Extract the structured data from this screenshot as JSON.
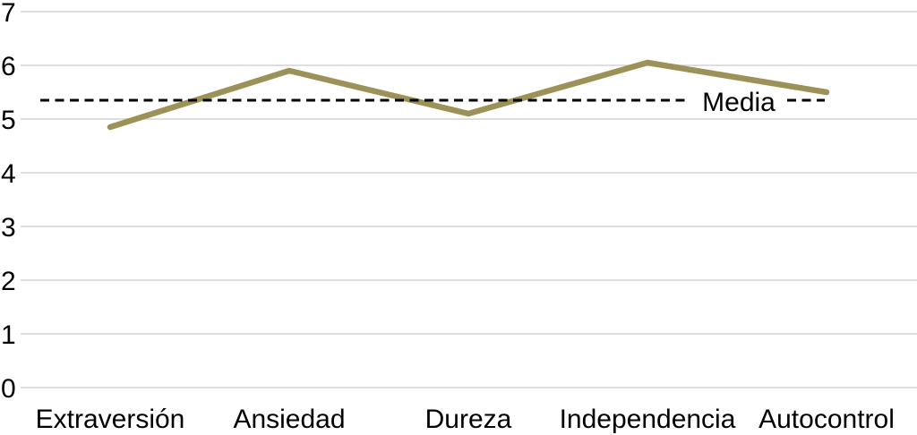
{
  "chart_data": {
    "type": "line",
    "categories": [
      "Extraversión",
      "Ansiedad",
      "Dureza",
      "Independencia",
      "Autocontrol"
    ],
    "values": [
      4.85,
      5.9,
      5.1,
      6.05,
      5.5
    ],
    "title": "",
    "xlabel": "",
    "ylabel": "",
    "ylim": [
      0,
      7
    ],
    "yticks": [
      0,
      1,
      2,
      3,
      4,
      5,
      6,
      7
    ],
    "grid": true,
    "legend": "none",
    "reference_line": {
      "label": "Media",
      "value": 5.35,
      "style": "dashed"
    },
    "colors": {
      "series_line": "#9c9156",
      "reference_line": "#000000",
      "gridline": "#d4d4d4",
      "text": "#000000",
      "background": "#ffffff"
    }
  }
}
